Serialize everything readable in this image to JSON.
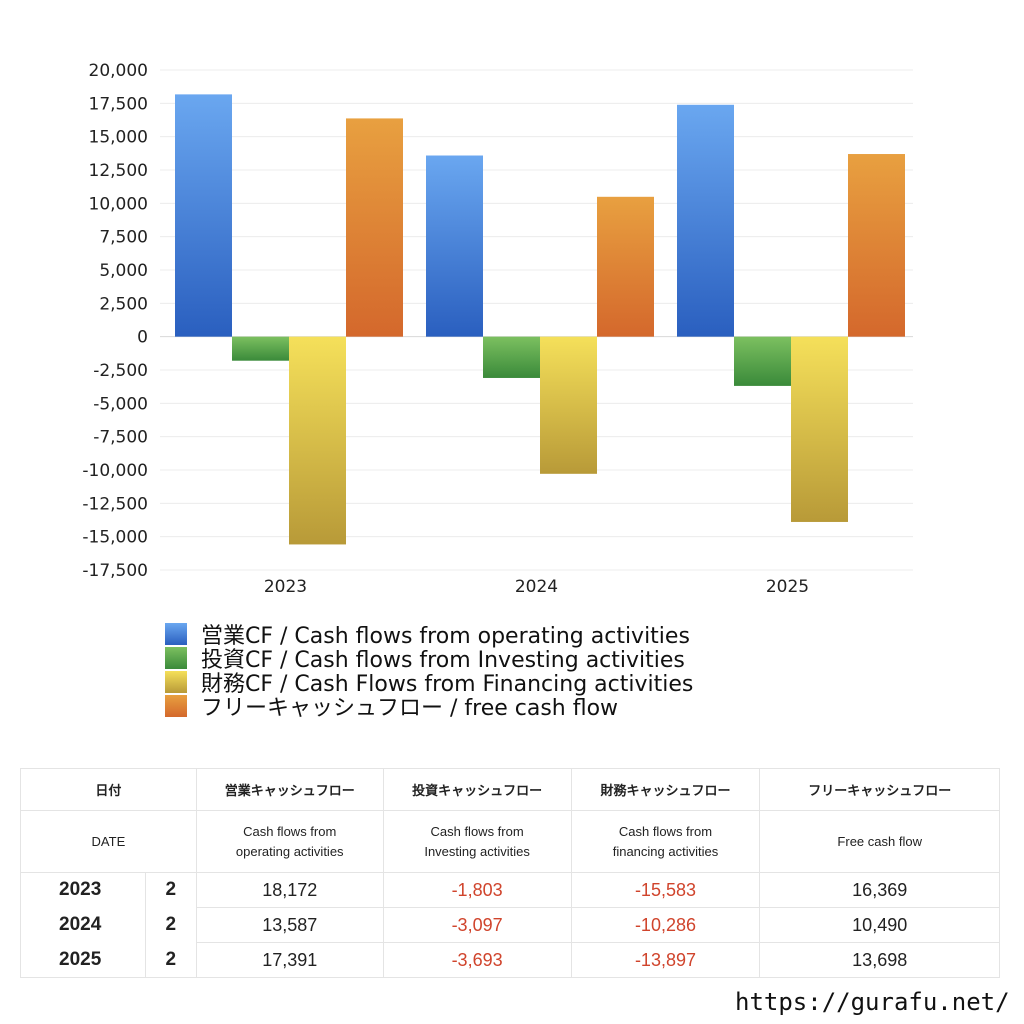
{
  "chart_data": {
    "type": "bar",
    "categories": [
      "2023",
      "2024",
      "2025"
    ],
    "series": [
      {
        "name": "営業CF / Cash flows from operating activities",
        "values": [
          18172,
          13587,
          17391
        ],
        "colors": [
          "#6aa7f0",
          "#2a5fbf"
        ]
      },
      {
        "name": "投資CF / Cash flows from Investing activities",
        "values": [
          -1803,
          -3097,
          -3693
        ],
        "colors": [
          "#7cc060",
          "#3a8a3a"
        ]
      },
      {
        "name": "財務CF / Cash Flows from Financing activities",
        "values": [
          -15583,
          -10286,
          -13897
        ],
        "colors": [
          "#f5e05a",
          "#b89a38"
        ]
      },
      {
        "name": "フリーキャッシュフロー / free cash flow",
        "values": [
          16369,
          10490,
          13698
        ],
        "colors": [
          "#e8a040",
          "#d4682c"
        ]
      }
    ],
    "ylim": [
      -17500,
      20000
    ],
    "yticks": [
      "20,000",
      "17,500",
      "15,000",
      "12,500",
      "10,000",
      "7,500",
      "5,000",
      "2,500",
      "0",
      "-2,500",
      "-5,000",
      "-7,500",
      "-10,000",
      "-12,500",
      "-15,000",
      "-17,500"
    ],
    "grid": true,
    "legend_position": "bottom"
  },
  "table": {
    "header1": [
      "日付",
      "営業キャッシュフロー",
      "投資キャッシュフロー",
      "財務キャッシュフロー",
      "フリーキャッシュフロー"
    ],
    "header2": [
      "DATE",
      "Cash flows from operating activities",
      "Cash flows from Investing activities",
      "Cash flows from financing activities",
      "Free cash flow"
    ],
    "rows": [
      {
        "year": "2023",
        "q": "2",
        "op": "18,172",
        "inv": "-1,803",
        "fin": "-15,583",
        "free": "16,369"
      },
      {
        "year": "2024",
        "q": "2",
        "op": "13,587",
        "inv": "-3,097",
        "fin": "-10,286",
        "free": "10,490"
      },
      {
        "year": "2025",
        "q": "2",
        "op": "17,391",
        "inv": "-3,693",
        "fin": "-13,897",
        "free": "13,698"
      }
    ]
  },
  "footer": {
    "site": "https://gurafu.net/"
  }
}
